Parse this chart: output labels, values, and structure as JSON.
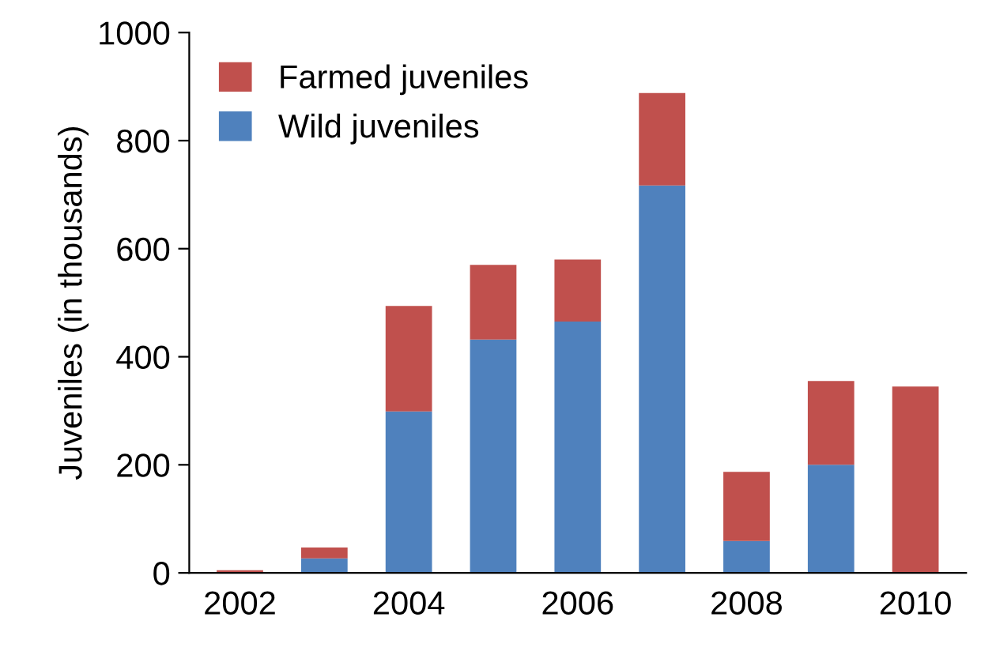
{
  "chart_data": {
    "type": "bar",
    "stacked": true,
    "ylabel": "Juveniles (in thousands)",
    "categories": [
      "2002",
      null,
      "2004",
      null,
      "2006",
      null,
      "2008",
      null,
      "2010"
    ],
    "series": [
      {
        "name": "Wild juveniles",
        "color": "#4f81bd",
        "values": [
          0,
          27,
          299,
          432,
          465,
          717,
          59,
          200,
          0
        ]
      },
      {
        "name": "Farmed juveniles",
        "color": "#c0504d",
        "values": [
          5,
          20,
          195,
          138,
          115,
          171,
          128,
          155,
          345
        ]
      }
    ],
    "ylim": [
      0,
      1000
    ],
    "yticks": [
      0,
      200,
      400,
      600,
      800,
      1000
    ],
    "legend": "top left",
    "grid": false
  }
}
